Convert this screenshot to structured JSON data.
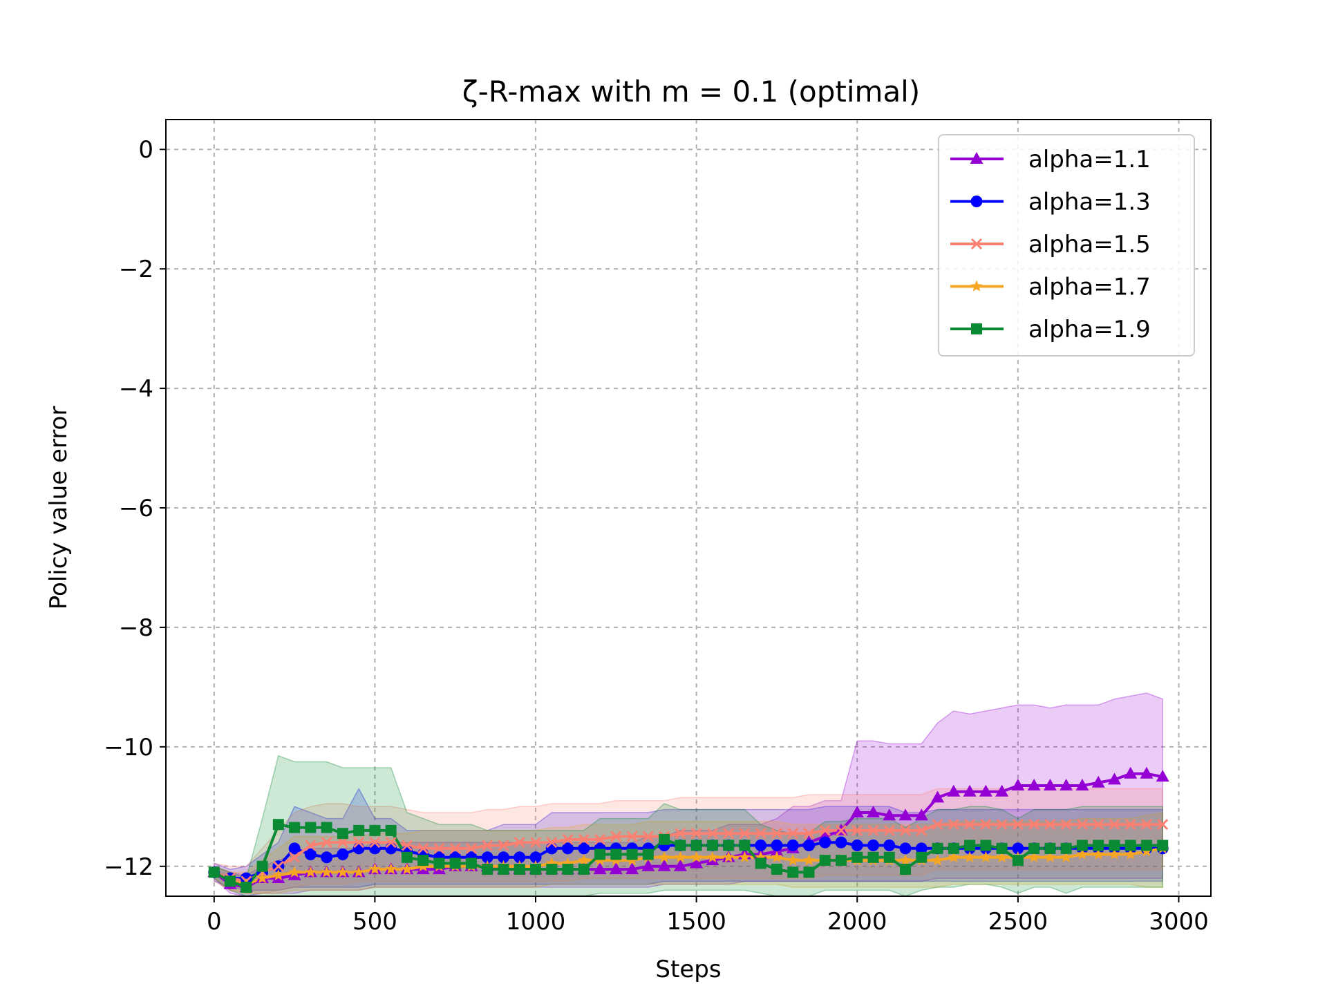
{
  "chart_data": {
    "type": "line",
    "title": "ζ-R-max with m = 0.1 (optimal)",
    "xlabel": "Steps",
    "ylabel": "Policy value error",
    "xlim": [
      -150,
      3100
    ],
    "ylim": [
      -12.5,
      0.5
    ],
    "xticks": [
      0,
      500,
      1000,
      1500,
      2000,
      2500,
      3000
    ],
    "xtick_labels": [
      "0",
      "500",
      "1000",
      "1500",
      "2000",
      "2500",
      "3000"
    ],
    "yticks": [
      0,
      -2,
      -4,
      -6,
      -8,
      -10,
      -12
    ],
    "ytick_labels": [
      "0",
      "−2",
      "−4",
      "−6",
      "−8",
      "−10",
      "−12"
    ],
    "grid": true,
    "legend_position": "top-right",
    "x": [
      0,
      50,
      100,
      150,
      200,
      250,
      300,
      350,
      400,
      450,
      500,
      550,
      600,
      650,
      700,
      750,
      800,
      850,
      900,
      950,
      1000,
      1050,
      1100,
      1150,
      1200,
      1250,
      1300,
      1350,
      1400,
      1450,
      1500,
      1550,
      1600,
      1650,
      1700,
      1750,
      1800,
      1850,
      1900,
      1950,
      2000,
      2050,
      2100,
      2150,
      2200,
      2250,
      2300,
      2350,
      2400,
      2450,
      2500,
      2550,
      2600,
      2650,
      2700,
      2750,
      2800,
      2850,
      2900,
      2950
    ],
    "series": [
      {
        "name": "alpha=1.1",
        "color": "#9400D3",
        "marker": "triangle",
        "values": [
          -12.1,
          -12.3,
          -12.35,
          -12.2,
          -12.2,
          -12.15,
          -12.1,
          -12.1,
          -12.1,
          -12.1,
          -12.05,
          -12.05,
          -12.05,
          -12.05,
          -12.05,
          -12.0,
          -12.0,
          -12.0,
          -12.05,
          -12.05,
          -12.05,
          -12.05,
          -12.05,
          -12.05,
          -12.05,
          -12.05,
          -12.05,
          -12.0,
          -12.0,
          -12.0,
          -11.95,
          -11.9,
          -11.85,
          -11.8,
          -11.8,
          -11.75,
          -11.7,
          -11.6,
          -11.5,
          -11.4,
          -11.1,
          -11.1,
          -11.15,
          -11.15,
          -11.15,
          -10.85,
          -10.75,
          -10.75,
          -10.75,
          -10.75,
          -10.65,
          -10.65,
          -10.65,
          -10.65,
          -10.65,
          -10.6,
          -10.55,
          -10.45,
          -10.45,
          -10.5
        ],
        "upper": [
          -12.0,
          -12.1,
          -12.15,
          -12.0,
          -11.9,
          -11.8,
          -11.7,
          -11.7,
          -11.7,
          -11.7,
          -11.6,
          -11.6,
          -11.6,
          -11.6,
          -11.6,
          -11.6,
          -11.6,
          -11.6,
          -11.6,
          -11.6,
          -11.6,
          -11.6,
          -11.6,
          -11.6,
          -11.6,
          -11.6,
          -11.6,
          -11.5,
          -11.5,
          -11.4,
          -11.4,
          -11.4,
          -11.3,
          -11.3,
          -11.3,
          -11.2,
          -11.0,
          -11.0,
          -10.9,
          -10.9,
          -9.9,
          -9.9,
          -9.95,
          -9.95,
          -9.95,
          -9.6,
          -9.4,
          -9.45,
          -9.4,
          -9.35,
          -9.3,
          -9.3,
          -9.35,
          -9.3,
          -9.3,
          -9.3,
          -9.2,
          -9.15,
          -9.1,
          -9.2
        ],
        "lower": [
          -12.2,
          -12.45,
          -12.5,
          -12.45,
          -12.45,
          -12.45,
          -12.4,
          -12.4,
          -12.4,
          -12.4,
          -12.35,
          -12.35,
          -12.35,
          -12.35,
          -12.35,
          -12.35,
          -12.35,
          -12.35,
          -12.35,
          -12.35,
          -12.35,
          -12.35,
          -12.35,
          -12.35,
          -12.35,
          -12.35,
          -12.35,
          -12.35,
          -12.3,
          -12.3,
          -12.3,
          -12.3,
          -12.3,
          -12.25,
          -12.25,
          -12.25,
          -12.25,
          -12.25,
          -12.25,
          -12.25,
          -12.25,
          -12.25,
          -12.25,
          -12.25,
          -12.25,
          -12.2,
          -12.2,
          -12.2,
          -12.2,
          -12.2,
          -12.2,
          -12.2,
          -12.2,
          -12.2,
          -12.2,
          -12.2,
          -12.2,
          -12.2,
          -12.2,
          -12.2
        ]
      },
      {
        "name": "alpha=1.3",
        "color": "#0000FF",
        "marker": "circle",
        "values": [
          -12.1,
          -12.2,
          -12.2,
          -12.1,
          -12.0,
          -11.7,
          -11.8,
          -11.85,
          -11.8,
          -11.7,
          -11.7,
          -11.7,
          -11.75,
          -11.8,
          -11.85,
          -11.85,
          -11.85,
          -11.85,
          -11.85,
          -11.85,
          -11.85,
          -11.7,
          -11.7,
          -11.7,
          -11.7,
          -11.7,
          -11.7,
          -11.7,
          -11.65,
          -11.65,
          -11.65,
          -11.65,
          -11.65,
          -11.65,
          -11.65,
          -11.65,
          -11.65,
          -11.65,
          -11.6,
          -11.6,
          -11.65,
          -11.65,
          -11.65,
          -11.7,
          -11.7,
          -11.7,
          -11.7,
          -11.7,
          -11.7,
          -11.7,
          -11.7,
          -11.7,
          -11.7,
          -11.7,
          -11.7,
          -11.7,
          -11.7,
          -11.7,
          -11.7,
          -11.7
        ],
        "upper": [
          -11.95,
          -12.05,
          -12.0,
          -11.8,
          -11.6,
          -11.0,
          -11.1,
          -11.2,
          -11.2,
          -10.7,
          -11.2,
          -11.2,
          -11.4,
          -11.4,
          -11.4,
          -11.4,
          -11.4,
          -11.4,
          -11.3,
          -11.3,
          -11.3,
          -11.1,
          -11.1,
          -11.1,
          -11.1,
          -11.1,
          -11.1,
          -11.1,
          -11.05,
          -11.05,
          -11.05,
          -11.05,
          -11.05,
          -11.05,
          -11.05,
          -11.05,
          -11.05,
          -11.05,
          -11.0,
          -11.0,
          -11.0,
          -11.0,
          -11.0,
          -11.1,
          -11.1,
          -11.05,
          -11.05,
          -11.05,
          -11.05,
          -11.05,
          -11.05,
          -11.05,
          -11.05,
          -11.05,
          -11.05,
          -11.05,
          -11.05,
          -11.05,
          -11.05,
          -11.05
        ],
        "lower": [
          -12.25,
          -12.35,
          -12.4,
          -12.4,
          -12.4,
          -12.35,
          -12.35,
          -12.35,
          -12.35,
          -12.35,
          -12.3,
          -12.3,
          -12.3,
          -12.3,
          -12.3,
          -12.3,
          -12.3,
          -12.3,
          -12.3,
          -12.3,
          -12.3,
          -12.3,
          -12.3,
          -12.3,
          -12.3,
          -12.3,
          -12.3,
          -12.3,
          -12.25,
          -12.25,
          -12.25,
          -12.25,
          -12.25,
          -12.25,
          -12.25,
          -12.25,
          -12.25,
          -12.25,
          -12.25,
          -12.25,
          -12.25,
          -12.25,
          -12.25,
          -12.25,
          -12.25,
          -12.25,
          -12.25,
          -12.25,
          -12.25,
          -12.25,
          -12.25,
          -12.25,
          -12.25,
          -12.25,
          -12.25,
          -12.25,
          -12.25,
          -12.25,
          -12.25,
          -12.25
        ]
      },
      {
        "name": "alpha=1.5",
        "color": "#FA8072",
        "marker": "x",
        "values": [
          -12.1,
          -12.2,
          -12.25,
          -12.1,
          -12.0,
          -11.85,
          -11.65,
          -11.6,
          -11.6,
          -11.6,
          -11.6,
          -11.6,
          -11.65,
          -11.7,
          -11.7,
          -11.7,
          -11.7,
          -11.65,
          -11.65,
          -11.6,
          -11.6,
          -11.6,
          -11.55,
          -11.55,
          -11.55,
          -11.5,
          -11.5,
          -11.5,
          -11.5,
          -11.45,
          -11.45,
          -11.45,
          -11.45,
          -11.45,
          -11.45,
          -11.45,
          -11.45,
          -11.45,
          -11.4,
          -11.4,
          -11.4,
          -11.4,
          -11.4,
          -11.4,
          -11.4,
          -11.3,
          -11.3,
          -11.3,
          -11.3,
          -11.3,
          -11.3,
          -11.3,
          -11.3,
          -11.3,
          -11.3,
          -11.3,
          -11.3,
          -11.3,
          -11.3,
          -11.3
        ],
        "upper": [
          -11.95,
          -12.0,
          -12.0,
          -11.7,
          -11.4,
          -11.1,
          -11.0,
          -10.95,
          -10.95,
          -11.0,
          -11.0,
          -11.0,
          -11.05,
          -11.1,
          -11.1,
          -11.1,
          -11.1,
          -11.05,
          -11.05,
          -11.0,
          -11.0,
          -10.95,
          -10.95,
          -10.95,
          -10.95,
          -10.9,
          -10.9,
          -10.9,
          -10.9,
          -10.85,
          -10.85,
          -10.85,
          -10.85,
          -10.85,
          -10.85,
          -10.85,
          -10.85,
          -10.8,
          -10.8,
          -10.8,
          -10.8,
          -10.8,
          -10.8,
          -10.8,
          -10.8,
          -10.7,
          -10.7,
          -10.7,
          -10.7,
          -10.7,
          -10.7,
          -10.7,
          -10.7,
          -10.7,
          -10.7,
          -10.7,
          -10.7,
          -10.7,
          -10.7,
          -10.7
        ],
        "lower": [
          -12.25,
          -12.4,
          -12.45,
          -12.45,
          -12.4,
          -12.35,
          -12.3,
          -12.3,
          -12.3,
          -12.25,
          -12.25,
          -12.25,
          -12.25,
          -12.25,
          -12.25,
          -12.25,
          -12.25,
          -12.25,
          -12.25,
          -12.25,
          -12.25,
          -12.25,
          -12.25,
          -12.2,
          -12.2,
          -12.2,
          -12.2,
          -12.2,
          -12.2,
          -12.2,
          -12.2,
          -12.2,
          -12.2,
          -12.2,
          -12.2,
          -12.2,
          -12.2,
          -12.2,
          -12.15,
          -12.15,
          -12.15,
          -12.15,
          -12.15,
          -12.15,
          -12.15,
          -12.05,
          -12.05,
          -12.05,
          -12.05,
          -12.05,
          -12.05,
          -12.05,
          -12.05,
          -12.05,
          -12.05,
          -12.05,
          -12.05,
          -12.05,
          -12.05,
          -12.05
        ]
      },
      {
        "name": "alpha=1.7",
        "color": "#F5A623",
        "marker": "star",
        "values": [
          -12.1,
          -12.25,
          -12.3,
          -12.2,
          -12.15,
          -12.1,
          -12.1,
          -12.1,
          -12.1,
          -12.1,
          -12.05,
          -12.05,
          -12.05,
          -12.0,
          -12.0,
          -12.0,
          -12.0,
          -12.0,
          -12.0,
          -12.0,
          -12.0,
          -11.95,
          -11.95,
          -11.9,
          -11.9,
          -11.9,
          -11.9,
          -11.85,
          -11.85,
          -11.85,
          -11.85,
          -11.85,
          -11.85,
          -11.85,
          -11.85,
          -11.85,
          -11.9,
          -11.9,
          -11.9,
          -11.9,
          -11.9,
          -11.9,
          -11.9,
          -11.9,
          -11.9,
          -11.9,
          -11.85,
          -11.85,
          -11.85,
          -11.85,
          -11.85,
          -11.85,
          -11.85,
          -11.85,
          -11.8,
          -11.8,
          -11.8,
          -11.8,
          -11.75,
          -11.7
        ],
        "upper": [
          -12.0,
          -12.1,
          -12.1,
          -11.9,
          -11.7,
          -11.5,
          -11.5,
          -11.5,
          -11.5,
          -11.5,
          -11.45,
          -11.45,
          -11.45,
          -11.4,
          -11.4,
          -11.4,
          -11.4,
          -11.4,
          -11.4,
          -11.4,
          -11.4,
          -11.35,
          -11.35,
          -11.3,
          -11.3,
          -11.3,
          -11.3,
          -11.25,
          -11.25,
          -11.25,
          -11.25,
          -11.25,
          -11.25,
          -11.25,
          -11.25,
          -11.25,
          -11.3,
          -11.3,
          -11.3,
          -11.3,
          -11.3,
          -11.3,
          -11.3,
          -11.3,
          -11.3,
          -11.3,
          -11.25,
          -11.25,
          -11.25,
          -11.25,
          -11.25,
          -11.25,
          -11.25,
          -11.25,
          -11.2,
          -11.2,
          -11.2,
          -11.2,
          -11.15,
          -11.1
        ],
        "lower": [
          -12.2,
          -12.4,
          -12.45,
          -12.45,
          -12.45,
          -12.4,
          -12.4,
          -12.4,
          -12.4,
          -12.4,
          -12.35,
          -12.35,
          -12.35,
          -12.35,
          -12.35,
          -12.35,
          -12.35,
          -12.35,
          -12.35,
          -12.35,
          -12.35,
          -12.3,
          -12.3,
          -12.3,
          -12.3,
          -12.3,
          -12.3,
          -12.3,
          -12.3,
          -12.3,
          -12.3,
          -12.3,
          -12.3,
          -12.3,
          -12.3,
          -12.3,
          -12.35,
          -12.35,
          -12.35,
          -12.35,
          -12.35,
          -12.35,
          -12.35,
          -12.35,
          -12.35,
          -12.35,
          -12.3,
          -12.3,
          -12.3,
          -12.3,
          -12.3,
          -12.3,
          -12.3,
          -12.3,
          -12.3,
          -12.3,
          -12.3,
          -12.3,
          -12.35,
          -12.35
        ]
      },
      {
        "name": "alpha=1.9",
        "color": "#0A8A33",
        "marker": "square",
        "values": [
          -12.1,
          -12.25,
          -12.35,
          -12.0,
          -11.3,
          -11.35,
          -11.35,
          -11.35,
          -11.45,
          -11.4,
          -11.4,
          -11.4,
          -11.85,
          -11.9,
          -11.95,
          -11.95,
          -11.95,
          -12.05,
          -12.05,
          -12.05,
          -12.05,
          -12.05,
          -12.05,
          -12.05,
          -11.8,
          -11.8,
          -11.8,
          -11.8,
          -11.55,
          -11.65,
          -11.65,
          -11.65,
          -11.65,
          -11.65,
          -11.95,
          -12.05,
          -12.1,
          -12.1,
          -11.9,
          -11.9,
          -11.85,
          -11.85,
          -11.85,
          -12.05,
          -11.85,
          -11.7,
          -11.7,
          -11.65,
          -11.65,
          -11.7,
          -11.9,
          -11.7,
          -11.7,
          -11.7,
          -11.65,
          -11.65,
          -11.65,
          -11.65,
          -11.65,
          -11.65
        ],
        "upper": [
          -12.0,
          -12.1,
          -12.2,
          -11.2,
          -10.15,
          -10.25,
          -10.25,
          -10.25,
          -10.35,
          -10.35,
          -10.35,
          -10.35,
          -11.1,
          -11.2,
          -11.3,
          -11.3,
          -11.3,
          -11.4,
          -11.4,
          -11.4,
          -11.4,
          -11.4,
          -11.4,
          -11.4,
          -11.2,
          -11.2,
          -11.2,
          -11.2,
          -10.95,
          -11.05,
          -11.05,
          -11.05,
          -11.05,
          -11.05,
          -11.3,
          -11.4,
          -11.45,
          -11.45,
          -11.25,
          -11.25,
          -11.2,
          -11.2,
          -11.2,
          -11.35,
          -11.2,
          -11.05,
          -11.05,
          -11.0,
          -11.0,
          -11.05,
          -11.2,
          -11.05,
          -11.05,
          -11.05,
          -11.0,
          -11.0,
          -11.0,
          -11.0,
          -11.0,
          -11.0
        ],
        "lower": [
          -12.2,
          -12.4,
          -12.5,
          -12.5,
          -12.5,
          -12.5,
          -12.5,
          -12.5,
          -12.5,
          -12.5,
          -12.5,
          -12.5,
          -12.5,
          -12.5,
          -12.5,
          -12.5,
          -12.5,
          -12.5,
          -12.5,
          -12.5,
          -12.5,
          -12.5,
          -12.5,
          -12.5,
          -12.45,
          -12.45,
          -12.45,
          -12.45,
          -12.4,
          -12.4,
          -12.4,
          -12.4,
          -12.4,
          -12.4,
          -12.45,
          -12.5,
          -12.5,
          -12.5,
          -12.4,
          -12.4,
          -12.4,
          -12.4,
          -12.4,
          -12.5,
          -12.4,
          -12.35,
          -12.35,
          -12.3,
          -12.3,
          -12.35,
          -12.45,
          -12.35,
          -12.35,
          -12.45,
          -12.35,
          -12.35,
          -12.35,
          -12.35,
          -12.35,
          -12.35
        ]
      }
    ]
  }
}
